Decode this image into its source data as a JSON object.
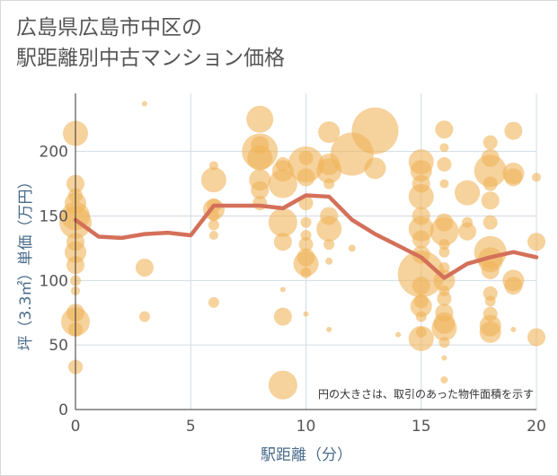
{
  "title_line1": "広島県広島市中区の",
  "title_line2": "駅距離別中古マンション価格",
  "chart_data": {
    "type": "scatter",
    "title": "広島県広島市中区の駅距離別中古マンション価格",
    "xlabel": "駅距離（分）",
    "ylabel": "坪（3.3㎡）単価（万円）",
    "xlim": [
      0,
      20
    ],
    "ylim": [
      0,
      245
    ],
    "xticks": [
      0,
      5,
      10,
      15,
      20
    ],
    "yticks": [
      0,
      50,
      100,
      150,
      200
    ],
    "grid": true,
    "annotation": "円の大きさは、取引のあった物件面積を示す",
    "colors": {
      "bubble": "#f0b45a",
      "line": "#d4705a",
      "grid": "#d3dbe3",
      "axis": "#333333"
    },
    "series": [
      {
        "type": "scatter",
        "points": [
          [
            0,
            214,
            14
          ],
          [
            0,
            175,
            10
          ],
          [
            0,
            166,
            8
          ],
          [
            0,
            160,
            12
          ],
          [
            0,
            150,
            16
          ],
          [
            0,
            145,
            18
          ],
          [
            0,
            130,
            10
          ],
          [
            0,
            122,
            12
          ],
          [
            0,
            112,
            10
          ],
          [
            0,
            100,
            6
          ],
          [
            0,
            92,
            5
          ],
          [
            0,
            75,
            10
          ],
          [
            0,
            68,
            16
          ],
          [
            0,
            62,
            8
          ],
          [
            0,
            33,
            8
          ],
          [
            3,
            237,
            3
          ],
          [
            3,
            110,
            10
          ],
          [
            3,
            72,
            6
          ],
          [
            6,
            189,
            5
          ],
          [
            6,
            178,
            14
          ],
          [
            6,
            158,
            8
          ],
          [
            6,
            155,
            12
          ],
          [
            6,
            150,
            6
          ],
          [
            6,
            143,
            6
          ],
          [
            6,
            135,
            5
          ],
          [
            6,
            83,
            6
          ],
          [
            8,
            225,
            15
          ],
          [
            8,
            205,
            10
          ],
          [
            8,
            200,
            20
          ],
          [
            8,
            195,
            14
          ],
          [
            8,
            178,
            12
          ],
          [
            8,
            170,
            10
          ],
          [
            8,
            160,
            8
          ],
          [
            9,
            190,
            8
          ],
          [
            9,
            185,
            12
          ],
          [
            9,
            175,
            16
          ],
          [
            9,
            145,
            16
          ],
          [
            9,
            130,
            10
          ],
          [
            9,
            93,
            3
          ],
          [
            9,
            72,
            10
          ],
          [
            9,
            19,
            16
          ],
          [
            10,
            195,
            8
          ],
          [
            10,
            190,
            20
          ],
          [
            10,
            180,
            10
          ],
          [
            10,
            160,
            8
          ],
          [
            10,
            145,
            6
          ],
          [
            10,
            135,
            6
          ],
          [
            10,
            128,
            8
          ],
          [
            10,
            118,
            10
          ],
          [
            10,
            113,
            14
          ],
          [
            10,
            106,
            6
          ],
          [
            10,
            74,
            3
          ],
          [
            11,
            215,
            12
          ],
          [
            11,
            190,
            12
          ],
          [
            11,
            185,
            14
          ],
          [
            11,
            175,
            6
          ],
          [
            11,
            150,
            10
          ],
          [
            11,
            140,
            14
          ],
          [
            11,
            128,
            6
          ],
          [
            11,
            115,
            4
          ],
          [
            11,
            62,
            3
          ],
          [
            12,
            198,
            24
          ],
          [
            12,
            125,
            4
          ],
          [
            13,
            216,
            26
          ],
          [
            13,
            187,
            12
          ],
          [
            14,
            58,
            3
          ],
          [
            15,
            192,
            14
          ],
          [
            15,
            185,
            12
          ],
          [
            15,
            175,
            10
          ],
          [
            15,
            165,
            14
          ],
          [
            15,
            150,
            10
          ],
          [
            15,
            140,
            14
          ],
          [
            15,
            132,
            10
          ],
          [
            15,
            120,
            10
          ],
          [
            15,
            105,
            26
          ],
          [
            15,
            96,
            10
          ],
          [
            15,
            84,
            8
          ],
          [
            15,
            80,
            12
          ],
          [
            15,
            72,
            6
          ],
          [
            15,
            60,
            6
          ],
          [
            15,
            55,
            14
          ],
          [
            16,
            217,
            10
          ],
          [
            16,
            203,
            5
          ],
          [
            16,
            190,
            8
          ],
          [
            16,
            175,
            5
          ],
          [
            16,
            145,
            10
          ],
          [
            16,
            138,
            16
          ],
          [
            16,
            128,
            6
          ],
          [
            16,
            122,
            6
          ],
          [
            16,
            110,
            6
          ],
          [
            16,
            100,
            12
          ],
          [
            16,
            92,
            6
          ],
          [
            16,
            86,
            8
          ],
          [
            16,
            75,
            10
          ],
          [
            16,
            67,
            12
          ],
          [
            16,
            63,
            14
          ],
          [
            16,
            52,
            6
          ],
          [
            16,
            40,
            3
          ],
          [
            16,
            23,
            4
          ],
          [
            17,
            168,
            14
          ],
          [
            17,
            145,
            6
          ],
          [
            17,
            138,
            10
          ],
          [
            18,
            207,
            8
          ],
          [
            18,
            195,
            10
          ],
          [
            18,
            185,
            18
          ],
          [
            18,
            175,
            8
          ],
          [
            18,
            162,
            10
          ],
          [
            18,
            145,
            8
          ],
          [
            18,
            122,
            18
          ],
          [
            18,
            116,
            14
          ],
          [
            18,
            108,
            10
          ],
          [
            18,
            90,
            8
          ],
          [
            18,
            84,
            6
          ],
          [
            18,
            74,
            8
          ],
          [
            18,
            65,
            12
          ],
          [
            18,
            60,
            12
          ],
          [
            19,
            216,
            10
          ],
          [
            19,
            183,
            12
          ],
          [
            19,
            180,
            10
          ],
          [
            19,
            100,
            12
          ],
          [
            19,
            96,
            10
          ],
          [
            19,
            62,
            3
          ],
          [
            20,
            180,
            5
          ],
          [
            20,
            130,
            10
          ],
          [
            20,
            56,
            10
          ]
        ]
      },
      {
        "type": "line",
        "x": [
          0,
          1,
          2,
          3,
          4,
          5,
          6,
          7,
          8,
          9,
          10,
          11,
          12,
          13,
          14,
          15,
          16,
          17,
          18,
          19,
          20
        ],
        "y": [
          147,
          134,
          133,
          136,
          137,
          135,
          158,
          158,
          158,
          156,
          166,
          165,
          147,
          136,
          127,
          118,
          102,
          113,
          118,
          122,
          118
        ]
      }
    ]
  }
}
